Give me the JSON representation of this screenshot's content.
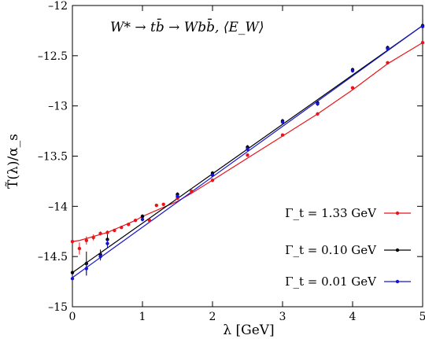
{
  "chart_data": {
    "type": "line",
    "title": "W* → tb̄ → Wbb̄,        ⟨E_W⟩",
    "xlabel": "λ [GeV]",
    "ylabel": "T̃(λ)/α_s",
    "xlim": [
      0,
      5
    ],
    "ylim": [
      -15,
      -12
    ],
    "xticks": [
      0,
      1,
      2,
      3,
      4,
      5
    ],
    "yticks": [
      -15,
      -14.5,
      -14,
      -13.5,
      -13,
      -12.5,
      -12
    ],
    "x_tick_labels": [
      "0",
      "1",
      "2",
      "3",
      "4",
      "5"
    ],
    "y_tick_labels": [
      "–15",
      "–14.5",
      "–14",
      "–13.5",
      "–13",
      "–12.5",
      "–12"
    ],
    "legend_position": "lower-right",
    "grid": false,
    "series": [
      {
        "name": "Γ_t = 1.33 GeV",
        "color": "#e8141a",
        "curve_x": [
          0,
          0.1,
          0.2,
          0.3,
          0.4,
          0.5,
          0.6,
          0.7,
          0.8,
          0.9,
          1.0,
          1.1,
          1.2,
          1.3,
          1.4,
          1.5,
          1.7,
          2.0,
          2.5,
          3.0,
          3.5,
          4.0,
          4.5,
          5.0
        ],
        "curve_y": [
          -14.35,
          -14.34,
          -14.32,
          -14.3,
          -14.28,
          -14.26,
          -14.23,
          -14.2,
          -14.17,
          -14.14,
          -14.1,
          -14.07,
          -14.04,
          -14.01,
          -13.98,
          -13.95,
          -13.87,
          -13.74,
          -13.52,
          -13.3,
          -13.08,
          -12.84,
          -12.58,
          -12.37
        ],
        "points": [
          {
            "x": 0.0,
            "y": -14.35,
            "err": 0.0
          },
          {
            "x": 0.1,
            "y": -14.42,
            "err": 0.06
          },
          {
            "x": 0.2,
            "y": -14.34,
            "err": 0.04
          },
          {
            "x": 0.3,
            "y": -14.31,
            "err": 0.03
          },
          {
            "x": 0.4,
            "y": -14.27,
            "err": 0.02
          },
          {
            "x": 0.5,
            "y": -14.26,
            "err": 0.02
          },
          {
            "x": 0.6,
            "y": -14.24,
            "err": 0.0
          },
          {
            "x": 0.7,
            "y": -14.21,
            "err": 0.0
          },
          {
            "x": 0.8,
            "y": -14.18,
            "err": 0.0
          },
          {
            "x": 0.9,
            "y": -14.14,
            "err": 0.0
          },
          {
            "x": 1.0,
            "y": -14.1,
            "err": 0.0
          },
          {
            "x": 1.1,
            "y": -14.14,
            "err": 0.0
          },
          {
            "x": 1.2,
            "y": -13.99,
            "err": 0.0
          },
          {
            "x": 1.3,
            "y": -13.98,
            "err": 0.0
          },
          {
            "x": 1.5,
            "y": -13.92,
            "err": 0.0
          },
          {
            "x": 1.7,
            "y": -13.85,
            "err": 0.0
          },
          {
            "x": 2.0,
            "y": -13.74,
            "err": 0.0
          },
          {
            "x": 2.5,
            "y": -13.49,
            "err": 0.0
          },
          {
            "x": 3.0,
            "y": -13.29,
            "err": 0.0
          },
          {
            "x": 3.5,
            "y": -13.08,
            "err": 0.0
          },
          {
            "x": 4.0,
            "y": -12.82,
            "err": 0.0
          },
          {
            "x": 4.5,
            "y": -12.57,
            "err": 0.0
          },
          {
            "x": 5.0,
            "y": -12.37,
            "err": 0.0
          }
        ]
      },
      {
        "name": "Γ_t = 0.10 GeV",
        "color": "#000000",
        "curve_x": [
          0,
          5
        ],
        "curve_y": [
          -14.66,
          -12.2
        ],
        "points": [
          {
            "x": 0.0,
            "y": -14.66,
            "err": 0.0
          },
          {
            "x": 0.2,
            "y": -14.57,
            "err": 0.12
          },
          {
            "x": 0.4,
            "y": -14.48,
            "err": 0.05
          },
          {
            "x": 0.5,
            "y": -14.33,
            "err": 0.05
          },
          {
            "x": 1.0,
            "y": -14.1,
            "err": 0.02
          },
          {
            "x": 1.5,
            "y": -13.88,
            "err": 0.02
          },
          {
            "x": 2.0,
            "y": -13.67,
            "err": 0.02
          },
          {
            "x": 2.5,
            "y": -13.41,
            "err": 0.02
          },
          {
            "x": 3.0,
            "y": -13.15,
            "err": 0.02
          },
          {
            "x": 3.5,
            "y": -12.97,
            "err": 0.02
          },
          {
            "x": 4.0,
            "y": -12.64,
            "err": 0.02
          },
          {
            "x": 4.5,
            "y": -12.42,
            "err": 0.02
          },
          {
            "x": 5.0,
            "y": -12.2,
            "err": 0.02
          }
        ]
      },
      {
        "name": "Γ_t = 0.01 GeV",
        "color": "#1414d2",
        "curve_x": [
          0,
          5
        ],
        "curve_y": [
          -14.71,
          -12.2
        ],
        "points": [
          {
            "x": 0.0,
            "y": -14.72,
            "err": 0.02
          },
          {
            "x": 0.2,
            "y": -14.62,
            "err": 0.06
          },
          {
            "x": 0.4,
            "y": -14.5,
            "err": 0.04
          },
          {
            "x": 0.5,
            "y": -14.37,
            "err": 0.04
          },
          {
            "x": 1.0,
            "y": -14.13,
            "err": 0.02
          },
          {
            "x": 1.5,
            "y": -13.9,
            "err": 0.02
          },
          {
            "x": 2.0,
            "y": -13.69,
            "err": 0.02
          },
          {
            "x": 2.5,
            "y": -13.43,
            "err": 0.02
          },
          {
            "x": 3.0,
            "y": -13.16,
            "err": 0.02
          },
          {
            "x": 3.5,
            "y": -12.98,
            "err": 0.02
          },
          {
            "x": 4.0,
            "y": -12.65,
            "err": 0.02
          },
          {
            "x": 4.5,
            "y": -12.43,
            "err": 0.02
          },
          {
            "x": 5.0,
            "y": -12.21,
            "err": 0.02
          }
        ]
      }
    ]
  }
}
